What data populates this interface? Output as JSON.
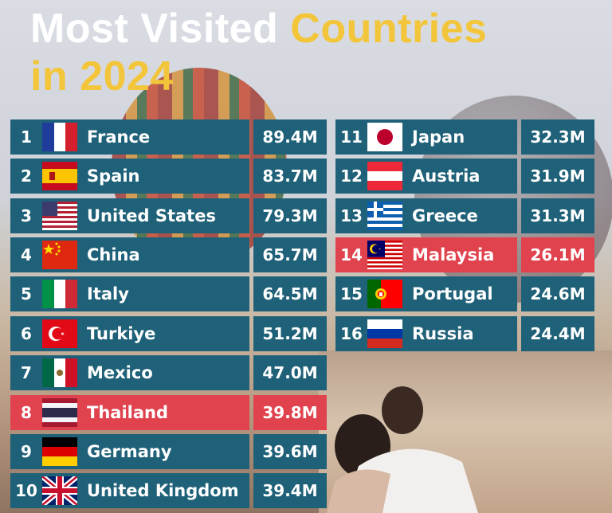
{
  "title": {
    "part1": "Most Visited ",
    "part2": "Countries",
    "part3": "in 2024"
  },
  "colors": {
    "row": "#1f6178",
    "highlight": "#e0424e",
    "title_white": "#ffffff",
    "title_yellow": "#f3c53a"
  },
  "rows": [
    {
      "rank": "1",
      "country": "France",
      "visitors": "89.4M",
      "flag": "france-flag-icon"
    },
    {
      "rank": "2",
      "country": "Spain",
      "visitors": "83.7M",
      "flag": "spain-flag-icon"
    },
    {
      "rank": "3",
      "country": "United States",
      "visitors": "79.3M",
      "flag": "usa-flag-icon"
    },
    {
      "rank": "4",
      "country": "China",
      "visitors": "65.7M",
      "flag": "china-flag-icon"
    },
    {
      "rank": "5",
      "country": "Italy",
      "visitors": "64.5M",
      "flag": "italy-flag-icon"
    },
    {
      "rank": "6",
      "country": "Turkiye",
      "visitors": "51.2M",
      "flag": "turkiye-flag-icon"
    },
    {
      "rank": "7",
      "country": "Mexico",
      "visitors": "47.0M",
      "flag": "mexico-flag-icon"
    },
    {
      "rank": "8",
      "country": "Thailand",
      "visitors": "39.8M",
      "flag": "thailand-flag-icon",
      "highlight": true
    },
    {
      "rank": "9",
      "country": "Germany",
      "visitors": "39.6M",
      "flag": "germany-flag-icon"
    },
    {
      "rank": "10",
      "country": "United Kingdom",
      "visitors": "39.4M",
      "flag": "uk-flag-icon"
    },
    {
      "rank": "11",
      "country": "Japan",
      "visitors": "32.3M",
      "flag": "japan-flag-icon"
    },
    {
      "rank": "12",
      "country": "Austria",
      "visitors": "31.9M",
      "flag": "austria-flag-icon"
    },
    {
      "rank": "13",
      "country": "Greece",
      "visitors": "31.3M",
      "flag": "greece-flag-icon"
    },
    {
      "rank": "14",
      "country": "Malaysia",
      "visitors": "26.1M",
      "flag": "malaysia-flag-icon",
      "highlight": true
    },
    {
      "rank": "15",
      "country": "Portugal",
      "visitors": "24.6M",
      "flag": "portugal-flag-icon"
    },
    {
      "rank": "16",
      "country": "Russia",
      "visitors": "24.4M",
      "flag": "russia-flag-icon"
    }
  ]
}
